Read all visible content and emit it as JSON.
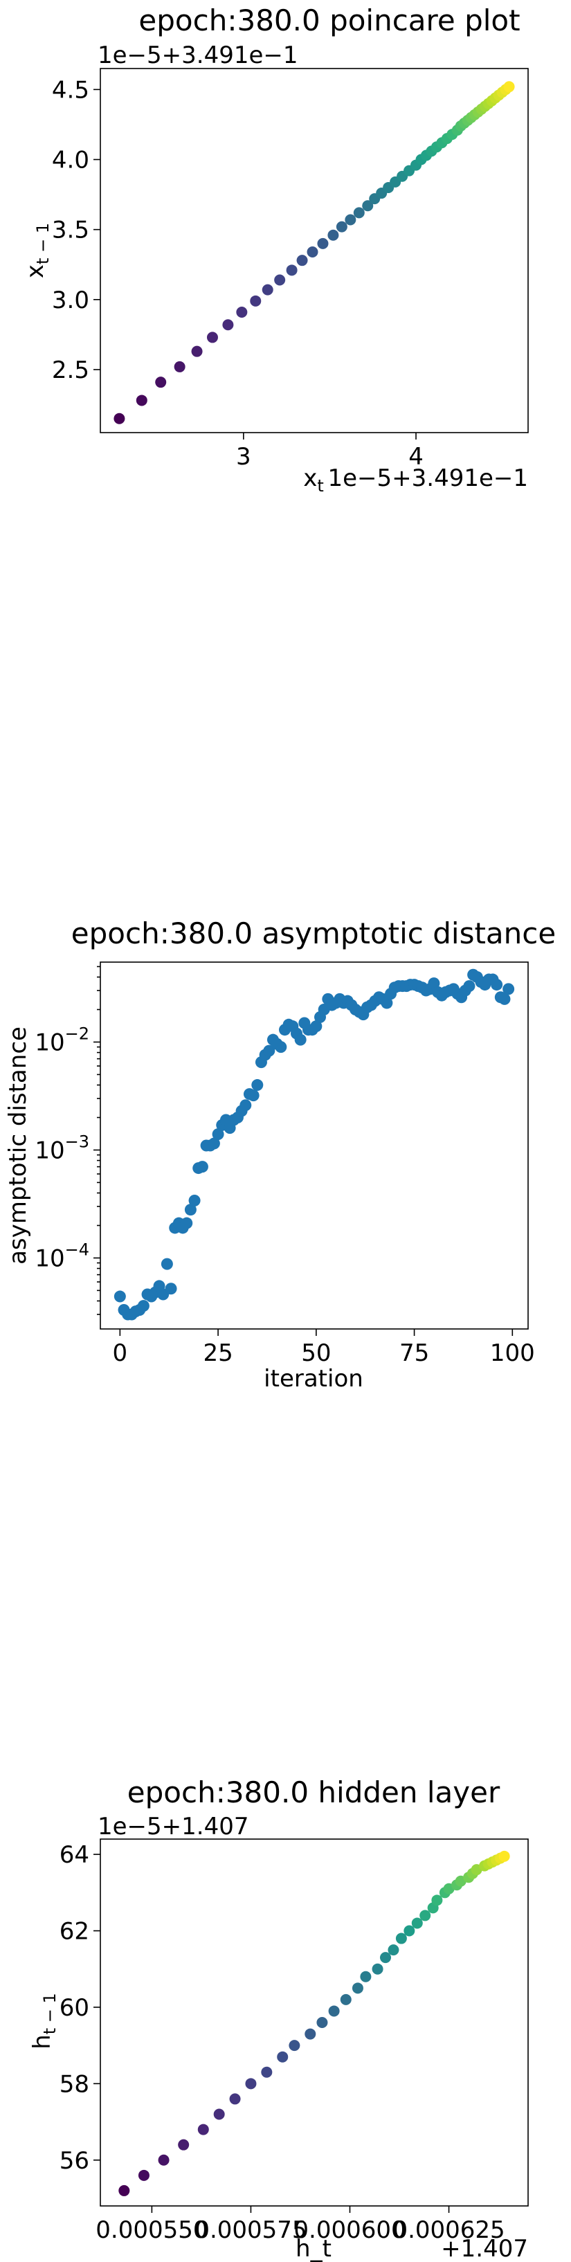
{
  "chart_data": [
    {
      "type": "scatter",
      "title": "epoch:380.0 poincare plot",
      "xlabel": "x_t",
      "ylabel": "x_{t-1}",
      "x_offset_text": "1e−5+3.491e−1",
      "y_offset_text": "1e−5+3.491e−1",
      "xlim": [
        2.17,
        4.65
      ],
      "ylim": [
        2.05,
        4.65
      ],
      "xticks": [
        3,
        4
      ],
      "xtick_labels": [
        "3",
        "4"
      ],
      "yticks": [
        2.5,
        3.0,
        3.5,
        4.0,
        4.5
      ],
      "ytick_labels": [
        "2.5",
        "3.0",
        "3.5",
        "4.0",
        "4.5"
      ],
      "colormap": "viridis",
      "colormap_note": "points colored by index",
      "x": [
        2.28,
        2.41,
        2.52,
        2.63,
        2.73,
        2.82,
        2.91,
        2.99,
        3.07,
        3.14,
        3.21,
        3.28,
        3.34,
        3.4,
        3.46,
        3.52,
        3.57,
        3.62,
        3.67,
        3.72,
        3.76,
        3.8,
        3.84,
        3.88,
        3.92,
        3.96,
        4.0,
        4.03,
        4.06,
        4.09,
        4.12,
        4.15,
        4.18,
        4.21,
        4.24,
        4.26,
        4.28,
        4.3,
        4.32,
        4.34,
        4.36,
        4.38,
        4.4,
        4.42,
        4.44,
        4.46,
        4.48,
        4.5,
        4.52,
        4.54
      ],
      "y": [
        2.15,
        2.28,
        2.41,
        2.52,
        2.63,
        2.73,
        2.82,
        2.91,
        2.99,
        3.07,
        3.14,
        3.21,
        3.28,
        3.34,
        3.4,
        3.46,
        3.52,
        3.57,
        3.62,
        3.67,
        3.72,
        3.76,
        3.8,
        3.84,
        3.88,
        3.92,
        3.96,
        4.0,
        4.03,
        4.06,
        4.09,
        4.12,
        4.15,
        4.18,
        4.21,
        4.24,
        4.26,
        4.28,
        4.3,
        4.32,
        4.34,
        4.36,
        4.38,
        4.4,
        4.42,
        4.44,
        4.46,
        4.48,
        4.5,
        4.52
      ]
    },
    {
      "type": "scatter",
      "title": "epoch:380.0 asymptotic distance",
      "xlabel": "iteration",
      "ylabel": "asymptotic distance",
      "yscale": "log",
      "xlim": [
        -5,
        104
      ],
      "ylim": [
        2.2e-05,
        0.055
      ],
      "xticks": [
        0,
        25,
        50,
        75,
        100
      ],
      "xtick_labels": [
        "0",
        "25",
        "50",
        "75",
        "100"
      ],
      "yticks": [
        0.0001,
        0.001,
        0.01
      ],
      "ytick_labels": [
        [
          "10",
          "−4"
        ],
        [
          "10",
          "−3"
        ],
        [
          "10",
          "−2"
        ]
      ],
      "color": "#1f77b4",
      "x": [
        0,
        1,
        2,
        3,
        4,
        5,
        6,
        7,
        8,
        9,
        10,
        11,
        12,
        13,
        14,
        15,
        16,
        17,
        18,
        19,
        20,
        21,
        22,
        23,
        24,
        25,
        26,
        27,
        28,
        29,
        30,
        31,
        32,
        33,
        34,
        35,
        36,
        37,
        38,
        39,
        40,
        41,
        42,
        43,
        44,
        45,
        46,
        47,
        48,
        49,
        50,
        51,
        52,
        53,
        54,
        55,
        56,
        57,
        58,
        59,
        60,
        61,
        62,
        63,
        64,
        65,
        66,
        67,
        68,
        69,
        70,
        71,
        72,
        73,
        74,
        75,
        76,
        77,
        78,
        79,
        80,
        81,
        82,
        83,
        84,
        85,
        86,
        87,
        88,
        89,
        90,
        91,
        92,
        93,
        94,
        95,
        96,
        97,
        98,
        99
      ],
      "y": [
        4.4e-05,
        3.3e-05,
        3e-05,
        3e-05,
        3.2e-05,
        3.3e-05,
        3.6e-05,
        4.6e-05,
        4.4e-05,
        4.8e-05,
        5.5e-05,
        4.6e-05,
        8.8e-05,
        5.2e-05,
        0.00019,
        0.00021,
        0.00019,
        0.00021,
        0.00028,
        0.00034,
        0.00068,
        0.0007,
        0.0011,
        0.0011,
        0.00115,
        0.0014,
        0.0017,
        0.0019,
        0.0016,
        0.0019,
        0.002,
        0.0023,
        0.0026,
        0.0033,
        0.0032,
        0.004,
        0.0065,
        0.0076,
        0.0083,
        0.0105,
        0.0096,
        0.009,
        0.013,
        0.0145,
        0.014,
        0.012,
        0.0105,
        0.015,
        0.013,
        0.013,
        0.014,
        0.017,
        0.02,
        0.025,
        0.022,
        0.023,
        0.025,
        0.023,
        0.024,
        0.022,
        0.02,
        0.019,
        0.018,
        0.021,
        0.022,
        0.024,
        0.026,
        0.025,
        0.023,
        0.028,
        0.032,
        0.033,
        0.033,
        0.033,
        0.034,
        0.034,
        0.033,
        0.032,
        0.03,
        0.031,
        0.035,
        0.029,
        0.027,
        0.029,
        0.03,
        0.031,
        0.028,
        0.026,
        0.03,
        0.033,
        0.042,
        0.04,
        0.036,
        0.034,
        0.038,
        0.038,
        0.034,
        0.026,
        0.025,
        0.031
      ]
    },
    {
      "type": "scatter",
      "title": "epoch:380.0 hidden layer",
      "xlabel": "h_t",
      "ylabel": "h_{t-1}",
      "x_offset_text": "+1.407",
      "y_offset_text": "1e−5+1.407",
      "xlim": [
        0.000537,
        0.000645
      ],
      "ylim": [
        54.8,
        64.4
      ],
      "xticks": [
        0.00055,
        0.000575,
        0.0006,
        0.000625
      ],
      "xtick_labels": [
        "0.000550",
        "0.000575",
        "0.000600",
        "0.000625"
      ],
      "yticks": [
        56,
        58,
        60,
        62,
        64
      ],
      "ytick_labels": [
        "56",
        "58",
        "60",
        "62",
        "64"
      ],
      "colormap": "viridis",
      "colormap_note": "points colored by index",
      "x": [
        0.000543,
        0.000548,
        0.000553,
        0.000558,
        0.000563,
        0.000567,
        0.000571,
        0.000575,
        0.000579,
        0.000583,
        0.000586,
        0.00059,
        0.000593,
        0.000596,
        0.000599,
        0.000602,
        0.000604,
        0.000607,
        0.000609,
        0.000611,
        0.000613,
        0.000615,
        0.000617,
        0.000619,
        0.000621,
        0.000622,
        0.000624,
        0.000625,
        0.000627,
        0.000628,
        0.00063,
        0.000631,
        0.000632,
        0.000634,
        0.000635,
        0.000636,
        0.000637,
        0.000638,
        0.000639
      ],
      "y": [
        55.2,
        55.6,
        56.0,
        56.4,
        56.8,
        57.2,
        57.6,
        58.0,
        58.3,
        58.7,
        59.0,
        59.3,
        59.6,
        59.9,
        60.2,
        60.5,
        60.8,
        61.0,
        61.3,
        61.5,
        61.8,
        62.0,
        62.2,
        62.4,
        62.6,
        62.8,
        63.0,
        63.1,
        63.2,
        63.3,
        63.4,
        63.5,
        63.6,
        63.7,
        63.75,
        63.8,
        63.85,
        63.9,
        63.95
      ]
    }
  ]
}
